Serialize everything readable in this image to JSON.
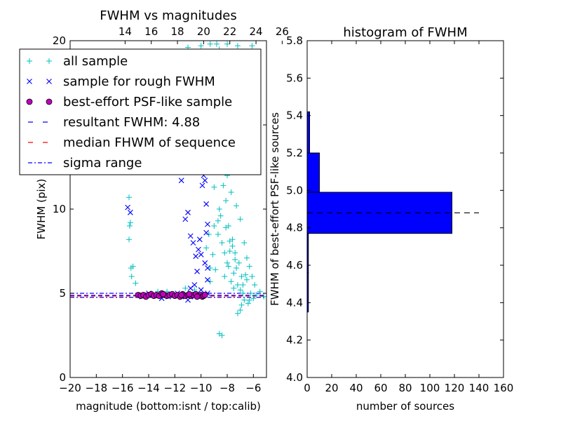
{
  "chart_data": [
    {
      "type": "scatter",
      "title": "FWHM vs magnitudes",
      "xlabel": "magnitude (bottom:isnt / top:calib)",
      "ylabel": "FWHM (pix)",
      "xlim": [
        -20,
        -5
      ],
      "ylim": [
        0,
        20
      ],
      "x_ticks": [
        "−20",
        "−18",
        "−16",
        "−14",
        "−12",
        "−10",
        "−8",
        "−6"
      ],
      "x_tick_values": [
        -20,
        -18,
        -16,
        -14,
        -12,
        -10,
        -8,
        -6
      ],
      "top_ticks": [
        "14",
        "16",
        "18",
        "20",
        "22",
        "24",
        "26"
      ],
      "top_tick_bottom_values": [
        -15.8,
        -13.8,
        -11.8,
        -9.8,
        -7.8,
        -5.8,
        -3.8
      ],
      "y_ticks": [
        "0",
        "5",
        "10",
        "15",
        "20"
      ],
      "y_tick_values": [
        0,
        5,
        10,
        15,
        20
      ],
      "legend_position": "upper-left",
      "legend": [
        {
          "label": "all sample",
          "marker": "plus",
          "color": "#00bfbf"
        },
        {
          "label": "sample for rough FWHM",
          "marker": "x",
          "color": "#0000ff"
        },
        {
          "label": "best-effort PSF-like sample",
          "marker": "circle",
          "color": "#bf00bf"
        },
        {
          "label": "resultant FWHM: 4.88",
          "marker": "dash",
          "color": "#0000ff"
        },
        {
          "label": "median FHWM of sequence",
          "marker": "dash",
          "color": "#ff0000"
        },
        {
          "label": "sigma range",
          "marker": "dashdot",
          "color": "#0000ff"
        }
      ],
      "series": [
        {
          "name": "all sample",
          "color": "#00bfbf",
          "points": [
            [
              -15.5,
              10.7
            ],
            [
              -15.4,
              9.2
            ],
            [
              -15.45,
              9.0
            ],
            [
              -15.5,
              8.2
            ],
            [
              -15.35,
              6.5
            ],
            [
              -15.3,
              6.0
            ],
            [
              -15.2,
              6.6
            ],
            [
              -15.0,
              5.6
            ],
            [
              -13.3,
              5.1
            ],
            [
              -12.6,
              5.1
            ],
            [
              -11.2,
              5.3
            ],
            [
              -11.0,
              5.0
            ],
            [
              -10.5,
              5.2
            ],
            [
              -9.8,
              4.9
            ],
            [
              -9.3,
              6.5
            ],
            [
              -9.0,
              9.0
            ],
            [
              -8.9,
              15.0
            ],
            [
              -8.8,
              12.2
            ],
            [
              -8.7,
              8.5
            ],
            [
              -8.6,
              10.0
            ],
            [
              -8.5,
              9.6
            ],
            [
              -8.4,
              8.0
            ],
            [
              -8.3,
              11.4
            ],
            [
              -8.2,
              7.4
            ],
            [
              -8.1,
              10.5
            ],
            [
              -8.0,
              6.8
            ],
            [
              -7.9,
              9.0
            ],
            [
              -7.8,
              7.5
            ],
            [
              -7.7,
              12.4
            ],
            [
              -7.6,
              8.2
            ],
            [
              -7.5,
              6.2
            ],
            [
              -7.4,
              7.0
            ],
            [
              -7.3,
              6.5
            ],
            [
              -7.2,
              5.5
            ],
            [
              -7.1,
              6.8
            ],
            [
              -7.0,
              5.2
            ],
            [
              -6.9,
              6.0
            ],
            [
              -6.8,
              5.5
            ],
            [
              -6.7,
              4.6
            ],
            [
              -6.6,
              6.1
            ],
            [
              -6.5,
              5.8
            ],
            [
              -6.4,
              4.4
            ],
            [
              -6.2,
              5.0
            ],
            [
              -6.0,
              4.7
            ],
            [
              -5.8,
              4.9
            ],
            [
              -5.5,
              5.1
            ],
            [
              -5.2,
              4.8
            ],
            [
              -7.0,
              4.0
            ],
            [
              -7.2,
              3.8
            ],
            [
              -8.6,
              2.6
            ],
            [
              -8.4,
              2.5
            ],
            [
              -6.9,
              4.3
            ],
            [
              -9.2,
              13.3
            ],
            [
              -9.0,
              11.3
            ],
            [
              -8.8,
              14.0
            ],
            [
              -8.5,
              13.1
            ],
            [
              -8.3,
              12.6
            ],
            [
              -8.7,
              9.3
            ],
            [
              -8.1,
              8.9
            ],
            [
              -7.8,
              8.1
            ],
            [
              -7.6,
              7.8
            ],
            [
              -7.4,
              7.4
            ],
            [
              -7.9,
              6.6
            ],
            [
              -8.2,
              6.0
            ],
            [
              -7.7,
              5.7
            ],
            [
              -7.5,
              5.3
            ],
            [
              -6.8,
              5.0
            ],
            [
              -6.3,
              4.6
            ],
            [
              -9.4,
              8.5
            ],
            [
              -9.6,
              7.7
            ],
            [
              -9.1,
              7.3
            ],
            [
              -8.9,
              6.4
            ],
            [
              -9.3,
              5.7
            ],
            [
              -11.0,
              19.6
            ],
            [
              -10.0,
              19.7
            ],
            [
              -9.3,
              19.8
            ],
            [
              -8.8,
              19.8
            ],
            [
              -8.0,
              19.8
            ],
            [
              -7.2,
              19.7
            ],
            [
              -6.1,
              19.7
            ],
            [
              -8.6,
              19.5
            ],
            [
              -8.4,
              17.2
            ],
            [
              -9.2,
              18.6
            ],
            [
              -8.7,
              16.4
            ],
            [
              -8.3,
              15.4
            ],
            [
              -9.0,
              17.0
            ],
            [
              -8.8,
              13.5
            ],
            [
              -8.0,
              12.0
            ],
            [
              -7.7,
              11.0
            ],
            [
              -7.3,
              10.2
            ],
            [
              -7.0,
              9.4
            ],
            [
              -6.7,
              8.0
            ],
            [
              -6.5,
              7.1
            ],
            [
              -6.3,
              6.6
            ],
            [
              -6.1,
              6.0
            ],
            [
              -5.9,
              5.5
            ]
          ]
        },
        {
          "name": "sample for rough FWHM",
          "color": "#0000ff",
          "points": [
            [
              -15.6,
              10.1
            ],
            [
              -15.4,
              9.8
            ],
            [
              -11.5,
              11.7
            ],
            [
              -11.0,
              9.8
            ],
            [
              -11.2,
              9.4
            ],
            [
              -10.8,
              8.4
            ],
            [
              -10.6,
              8.0
            ],
            [
              -10.4,
              7.2
            ],
            [
              -10.2,
              7.6
            ],
            [
              -10.1,
              8.2
            ],
            [
              -10.0,
              7.3
            ],
            [
              -10.0,
              12.5
            ],
            [
              -9.9,
              11.4
            ],
            [
              -9.8,
              12.0
            ],
            [
              -9.7,
              11.7
            ],
            [
              -9.6,
              10.3
            ],
            [
              -9.5,
              9.1
            ],
            [
              -9.6,
              8.6
            ],
            [
              -9.7,
              6.8
            ],
            [
              -9.5,
              6.5
            ],
            [
              -10.3,
              6.3
            ],
            [
              -10.5,
              5.5
            ],
            [
              -10.8,
              5.3
            ],
            [
              -9.5,
              5.8
            ],
            [
              -9.5,
              5.0
            ],
            [
              -10.0,
              5.2
            ],
            [
              -11.5,
              4.8
            ],
            [
              -11.8,
              5.0
            ],
            [
              -12.2,
              4.9
            ],
            [
              -12.5,
              4.8
            ],
            [
              -14.0,
              5.0
            ],
            [
              -14.5,
              4.8
            ],
            [
              -13.0,
              4.7
            ],
            [
              -11.0,
              4.6
            ],
            [
              -10.5,
              4.8
            ],
            [
              -10.2,
              4.9
            ]
          ]
        },
        {
          "name": "best-effort PSF-like sample",
          "color": "#bf00bf",
          "points": [
            [
              -14.8,
              4.9
            ],
            [
              -14.6,
              4.85
            ],
            [
              -14.4,
              4.9
            ],
            [
              -14.2,
              4.8
            ],
            [
              -14.0,
              4.9
            ],
            [
              -13.8,
              4.95
            ],
            [
              -13.6,
              4.85
            ],
            [
              -13.4,
              4.9
            ],
            [
              -13.2,
              4.85
            ],
            [
              -13.0,
              5.0
            ],
            [
              -12.8,
              4.9
            ],
            [
              -12.6,
              4.85
            ],
            [
              -12.4,
              4.9
            ],
            [
              -12.2,
              4.95
            ],
            [
              -12.0,
              4.85
            ],
            [
              -11.8,
              4.9
            ],
            [
              -11.6,
              4.8
            ],
            [
              -11.4,
              4.95
            ],
            [
              -11.2,
              4.85
            ],
            [
              -11.0,
              4.9
            ],
            [
              -10.8,
              4.85
            ],
            [
              -10.6,
              4.9
            ],
            [
              -10.4,
              4.95
            ],
            [
              -10.2,
              4.85
            ],
            [
              -10.0,
              4.9
            ],
            [
              -9.9,
              4.8
            ],
            [
              -9.8,
              4.85
            ],
            [
              -9.7,
              4.9
            ],
            [
              -12.9,
              4.95
            ],
            [
              -11.5,
              4.9
            ],
            [
              -10.9,
              4.95
            ],
            [
              -10.3,
              4.8
            ]
          ]
        }
      ],
      "lines": [
        {
          "name": "resultant FWHM: 4.88",
          "y": 4.88,
          "color": "#0000ff",
          "style": "dashed"
        },
        {
          "name": "median FHWM of sequence",
          "y": 4.84,
          "color": "#ff0000",
          "style": "dashed"
        },
        {
          "name": "sigma range",
          "y": 5.0,
          "color": "#0000ff",
          "style": "dashdot"
        },
        {
          "name": "sigma range",
          "y": 4.76,
          "color": "#0000ff",
          "style": "dashdot"
        }
      ]
    },
    {
      "type": "bar",
      "orientation": "horizontal",
      "title": "histogram of FWHM",
      "xlabel": "number of sources",
      "ylabel": "FWHM of best-effort PSF-like sources",
      "xlim": [
        0,
        160
      ],
      "ylim": [
        4.0,
        5.8
      ],
      "x_ticks": [
        "0",
        "20",
        "40",
        "60",
        "80",
        "100",
        "120",
        "140",
        "160"
      ],
      "x_tick_values": [
        0,
        20,
        40,
        60,
        80,
        100,
        120,
        140,
        160
      ],
      "y_ticks": [
        "4.0",
        "4.2",
        "4.4",
        "4.6",
        "4.8",
        "5.0",
        "5.2",
        "5.4",
        "5.6",
        "5.8"
      ],
      "y_tick_values": [
        4.0,
        4.2,
        4.4,
        4.6,
        4.8,
        5.0,
        5.2,
        5.4,
        5.6,
        5.8
      ],
      "bar_color": "#0000ff",
      "bins": [
        {
          "from": 4.35,
          "to": 4.56,
          "count": 1
        },
        {
          "from": 4.56,
          "to": 4.77,
          "count": 1
        },
        {
          "from": 4.77,
          "to": 4.99,
          "count": 118
        },
        {
          "from": 4.99,
          "to": 5.2,
          "count": 10
        },
        {
          "from": 5.2,
          "to": 5.42,
          "count": 2
        }
      ],
      "reference_line": {
        "y": 4.88,
        "x_to": 140,
        "color": "#000000",
        "style": "dashed"
      }
    }
  ]
}
